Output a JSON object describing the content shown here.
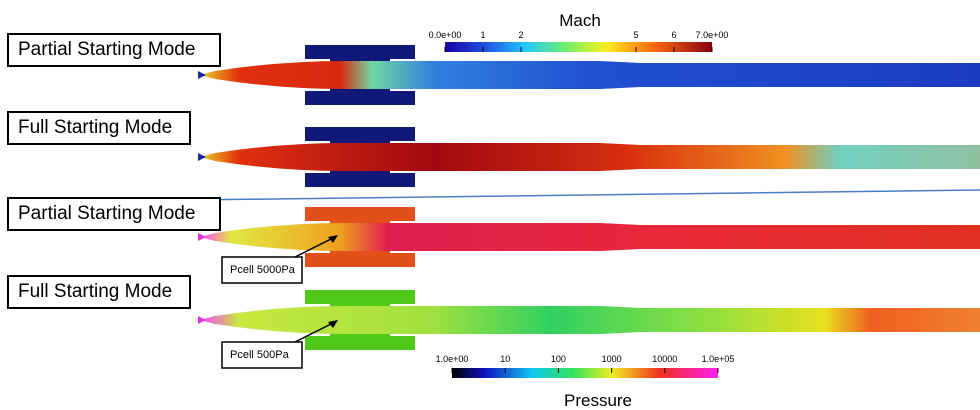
{
  "panels": [
    {
      "label": "Partial Starting Mode"
    },
    {
      "label": "Full Starting Mode"
    },
    {
      "label": "Partial Starting Mode",
      "note": "Pcell 5000Pa"
    },
    {
      "label": "Full Starting Mode",
      "note": "Pcell 500Pa"
    }
  ],
  "mach_colorbar": {
    "title": "Mach",
    "ticks": [
      "0.0e+00",
      "1",
      "2",
      "5",
      "6",
      "7.0e+00"
    ]
  },
  "pressure_colorbar": {
    "title": "Pressure",
    "ticks": [
      "1.0e+00",
      "10",
      "100",
      "1000",
      "10000",
      "1.0e+05"
    ]
  }
}
